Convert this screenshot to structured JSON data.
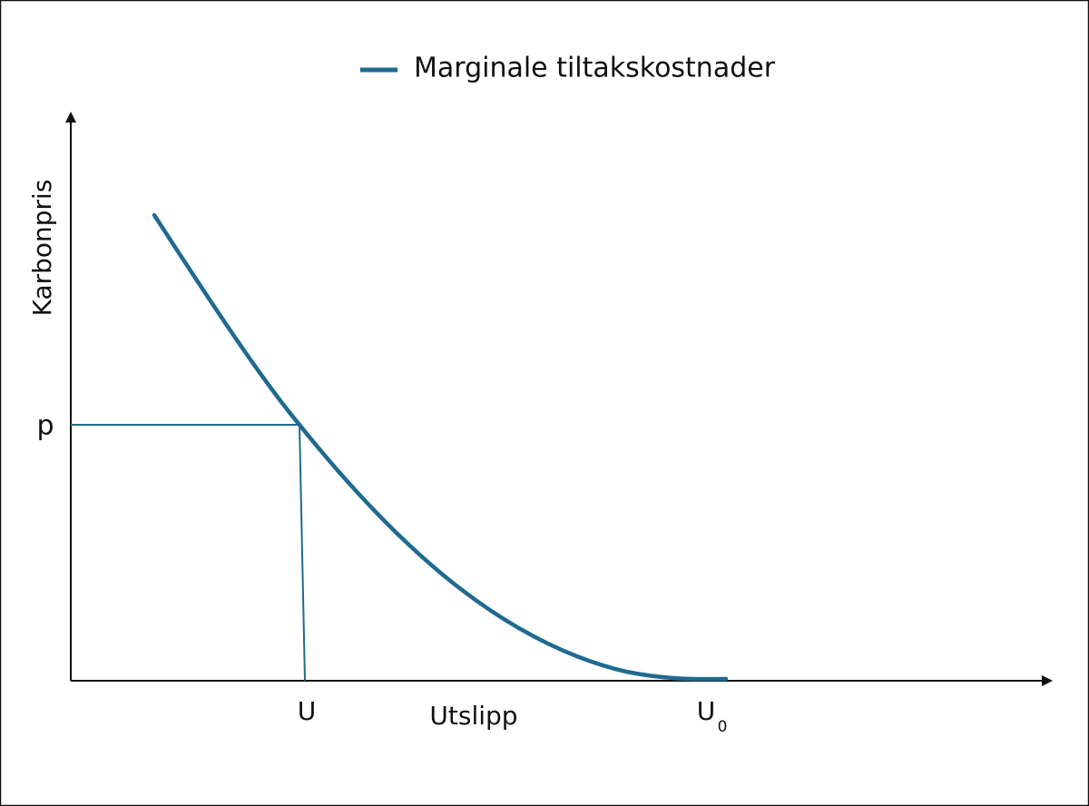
{
  "legend": {
    "label": "Marginale tiltakskostnader"
  },
  "axes": {
    "y_label": "Karbonpris",
    "x_label": "Utslipp"
  },
  "markers": {
    "price": "p",
    "emission": "U",
    "baseline": {
      "text": "U",
      "subscript": "0"
    }
  }
}
